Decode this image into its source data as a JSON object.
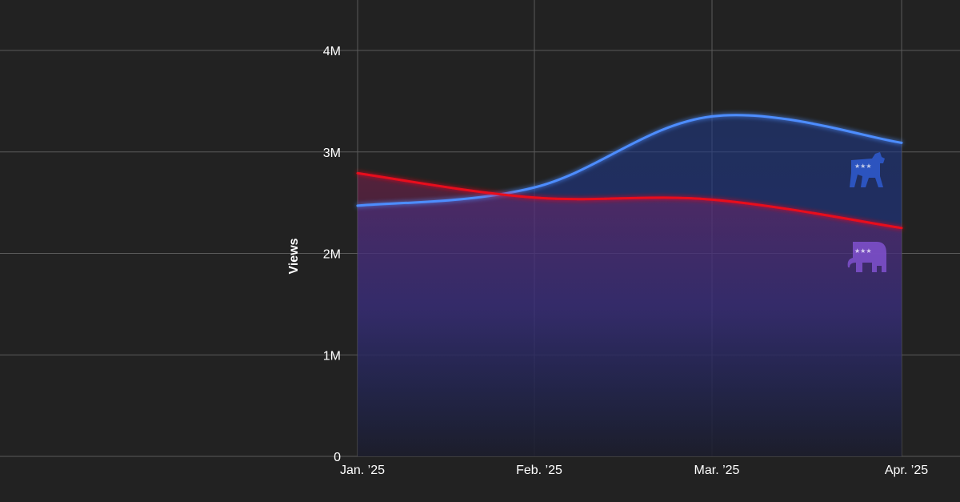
{
  "chart_data": {
    "type": "line",
    "title": "",
    "xlabel": "",
    "ylabel": "Views",
    "x": [
      "Jan. ’25",
      "Feb. ’25",
      "Mar. ’25",
      "Apr. ’25"
    ],
    "ylim": [
      0,
      4500000
    ],
    "y_ticks": [
      0,
      1000000,
      2000000,
      3000000,
      4000000
    ],
    "y_tick_labels": [
      "0",
      "1M",
      "2M",
      "3M",
      "4M"
    ],
    "grid": true,
    "series": [
      {
        "icon": "democrat-donkey-icon",
        "color": "#4d8dff",
        "values": [
          2470000,
          2650000,
          3350000,
          3090000
        ]
      },
      {
        "icon": "republican-elephant-icon",
        "color": "#e8101c",
        "values": [
          2790000,
          2550000,
          2530000,
          2250000
        ]
      }
    ],
    "background_color": "#222222",
    "grid_color": "#5a5a5a"
  }
}
